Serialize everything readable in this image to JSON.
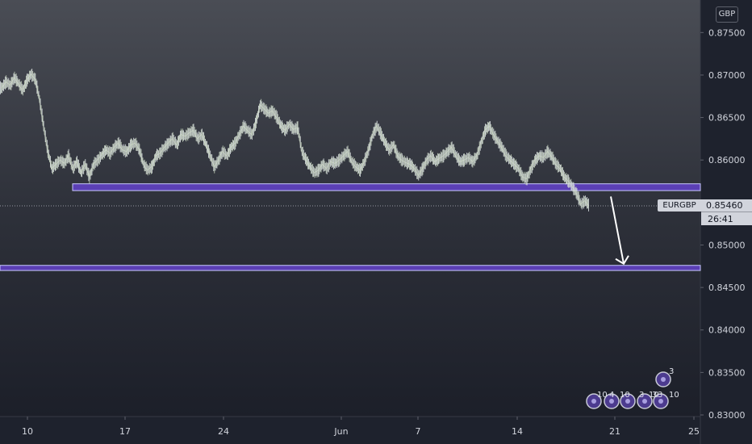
{
  "chart_data": {
    "type": "line",
    "symbol": "EURGBP",
    "currency": "GBP",
    "last_price": "0.85460",
    "countdown": "26:41",
    "ylim": [
      0.83,
      0.8775
    ],
    "y_ticks": [
      "0.87500",
      "0.87000",
      "0.86500",
      "0.86000",
      "0.85500",
      "0.85000",
      "0.84500",
      "0.84000",
      "0.83500",
      "0.83000"
    ],
    "x_ticks": [
      "10",
      "17",
      "24",
      "Jun",
      "7",
      "14",
      "21",
      "25"
    ],
    "series": [
      {
        "values": [
          0.8685,
          0.8692,
          0.8688,
          0.8697,
          0.869,
          0.8682,
          0.8694,
          0.8701,
          0.8695,
          0.8672,
          0.864,
          0.861,
          0.859,
          0.8595,
          0.86,
          0.8596,
          0.8605,
          0.859,
          0.8598,
          0.8585,
          0.8595,
          0.858,
          0.8595,
          0.86,
          0.8606,
          0.8612,
          0.8608,
          0.8615,
          0.862,
          0.8612,
          0.861,
          0.8618,
          0.862,
          0.8612,
          0.8595,
          0.8588,
          0.8592,
          0.8605,
          0.8608,
          0.8615,
          0.862,
          0.8625,
          0.8618,
          0.863,
          0.8628,
          0.8632,
          0.8635,
          0.8625,
          0.863,
          0.8618,
          0.8605,
          0.8592,
          0.86,
          0.861,
          0.8605,
          0.8615,
          0.862,
          0.863,
          0.864,
          0.8635,
          0.863,
          0.8645,
          0.8665,
          0.866,
          0.8655,
          0.8658,
          0.865,
          0.864,
          0.8635,
          0.8642,
          0.8636,
          0.8638,
          0.861,
          0.86,
          0.8592,
          0.8585,
          0.8588,
          0.8595,
          0.859,
          0.8598,
          0.8596,
          0.86,
          0.8605,
          0.861,
          0.8598,
          0.8592,
          0.8588,
          0.8598,
          0.8612,
          0.863,
          0.864,
          0.863,
          0.862,
          0.8612,
          0.8618,
          0.8605,
          0.86,
          0.8597,
          0.8595,
          0.859,
          0.8582,
          0.859,
          0.86,
          0.8605,
          0.8598,
          0.8602,
          0.8605,
          0.861,
          0.8615,
          0.8605,
          0.8598,
          0.86,
          0.8603,
          0.8598,
          0.8605,
          0.862,
          0.8635,
          0.864,
          0.863,
          0.8622,
          0.8615,
          0.8605,
          0.86,
          0.8595,
          0.859,
          0.858,
          0.8578,
          0.859,
          0.86,
          0.8605,
          0.8603,
          0.861,
          0.8604,
          0.8595,
          0.859,
          0.858,
          0.8575,
          0.8568,
          0.856,
          0.8548,
          0.8552,
          0.8546
        ]
      }
    ],
    "annotations": {
      "resistance_zone": [
        0.8564,
        0.8572
      ],
      "support_zone": [
        0.847,
        0.8476
      ],
      "arrow": {
        "from_price": 0.8557,
        "to_price": 0.8476
      }
    },
    "event_badges": [
      "3",
      "10",
      "4",
      "10",
      "3",
      "10",
      "3",
      "10",
      "3"
    ],
    "grid": false,
    "legend": "none"
  }
}
